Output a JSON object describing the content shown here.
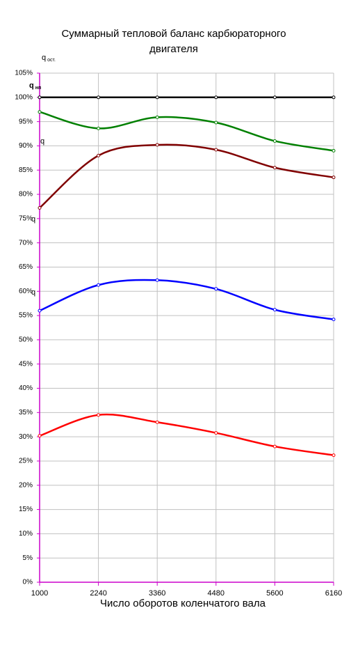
{
  "chart_data": {
    "type": "line",
    "title": "Суммарный тепловой баланс карбюраторного двигателя",
    "x_label": "Число оборотов коленчатого вала",
    "categories": [
      "1000",
      "2240",
      "3360",
      "4480",
      "5600",
      "6160"
    ],
    "ylim": [
      0,
      105
    ],
    "yticks": [
      {
        "value": 0,
        "label": "0%"
      },
      {
        "value": 5,
        "label": "5%"
      },
      {
        "value": 10,
        "label": "10%"
      },
      {
        "value": 15,
        "label": "15%"
      },
      {
        "value": 20,
        "label": "20%"
      },
      {
        "value": 25,
        "label": "25%"
      },
      {
        "value": 30,
        "label": "30%"
      },
      {
        "value": 35,
        "label": "35%"
      },
      {
        "value": 40,
        "label": "40%"
      },
      {
        "value": 45,
        "label": "45%"
      },
      {
        "value": 50,
        "label": "50%"
      },
      {
        "value": 55,
        "label": "55%"
      },
      {
        "value": 60,
        "label": "60%"
      },
      {
        "value": 65,
        "label": "65%"
      },
      {
        "value": 70,
        "label": "70%"
      },
      {
        "value": 75,
        "label": "75%"
      },
      {
        "value": 80,
        "label": "80%"
      },
      {
        "value": 85,
        "label": "85%"
      },
      {
        "value": 90,
        "label": "90%"
      },
      {
        "value": 95,
        "label": "95%"
      },
      {
        "value": 100,
        "label": "100%"
      },
      {
        "value": 105,
        "label": "105%"
      }
    ],
    "grid": true,
    "axis_color": "#cc00cc",
    "annotations": [
      {
        "text": "q",
        "sub": "ост."
      },
      {
        "text": "q",
        "sub": "нп"
      },
      {
        "text": "q"
      },
      {
        "text": "q"
      },
      {
        "text": "q"
      }
    ],
    "series": [
      {
        "color": "#000000",
        "values": [
          100,
          100,
          100,
          100,
          100,
          100
        ]
      },
      {
        "color": "#008000",
        "values": [
          97,
          93.6,
          95.9,
          94.8,
          91,
          89
        ]
      },
      {
        "color": "#800000",
        "values": [
          77.2,
          88,
          90.2,
          89.2,
          85.5,
          83.5
        ]
      },
      {
        "color": "#0000ff",
        "values": [
          56,
          61.3,
          62.3,
          60.5,
          56.2,
          54.2
        ]
      },
      {
        "color": "#ff0000",
        "values": [
          30.2,
          34.5,
          33,
          30.8,
          28,
          26.2
        ]
      }
    ]
  }
}
